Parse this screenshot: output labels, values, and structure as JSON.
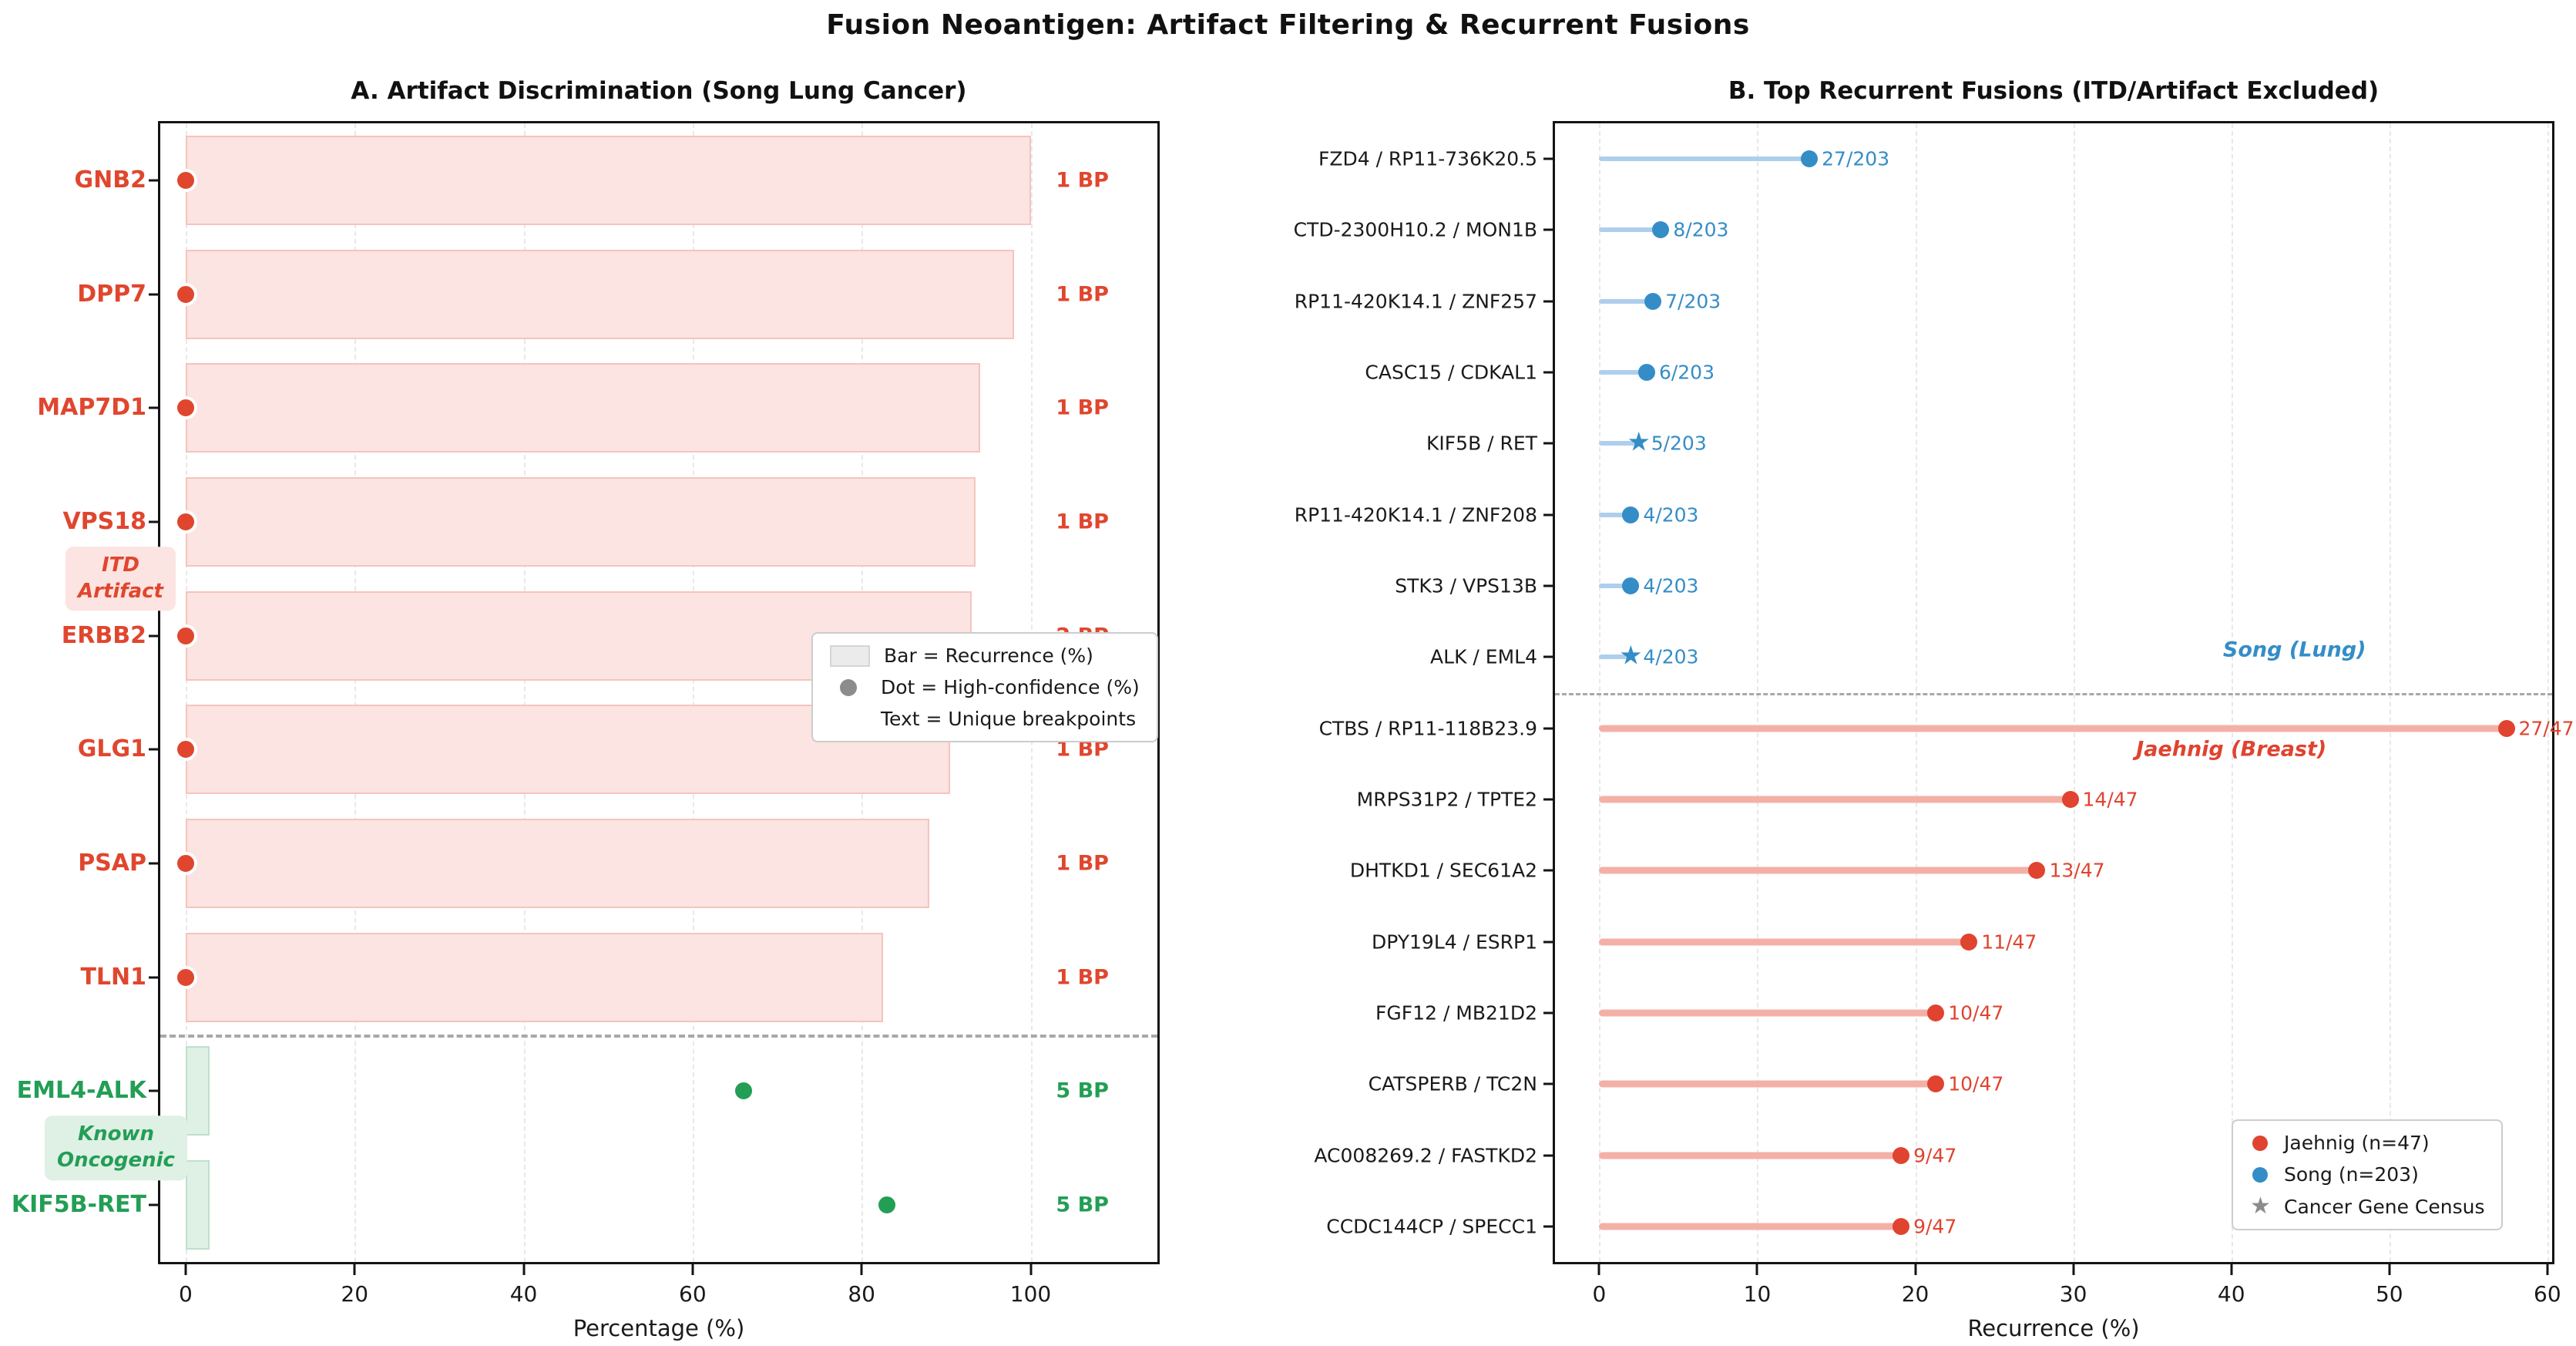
{
  "suptitle": "Fusion Neoantigen: Artifact Filtering & Recurrent Fusions",
  "colors": {
    "artifact_red": "#e0462e",
    "artifact_bar_fill": "#fbe4e1",
    "artifact_bar_edge": "#f5c4bd",
    "oncogenic_green": "#239e55",
    "oncogenic_bar_fill": "#dff0e5",
    "oncogenic_bar_edge": "#bfe0cc",
    "song_blue": "#348dc7",
    "song_stem": "#aecfec",
    "jaehnig_red": "#e0432f",
    "jaehnig_stem": "#f4b0a7",
    "census_gray": "#8c8c8c",
    "separator_gray": "#a8a8a8",
    "grid_gray": "#e8e8e8",
    "legend_swatch_fill": "#ebebeb",
    "legend_swatch_edge": "#d5d5d5",
    "legend_dot_gray": "#8c8c8c",
    "spine_black": "#141414"
  },
  "chart_data": [
    {
      "id": "A",
      "type": "bar",
      "title": "A. Artifact Discrimination (Song Lung Cancer)",
      "xlabel": "Percentage (%)",
      "xlim": [
        -3,
        115
      ],
      "xticks": [
        0,
        20,
        40,
        60,
        80,
        100
      ],
      "grid": true,
      "bp_text_x": 103,
      "separator_after_row": 7,
      "legend_items": [
        {
          "label": "Bar = Recurrence (%)",
          "marker": "bar"
        },
        {
          "label": "Dot = High-confidence (%)",
          "marker": "dot"
        },
        {
          "label": "Text = Unique breakpoints",
          "marker": "none"
        }
      ],
      "group_labels": [
        {
          "lines": [
            "ITD",
            "Artifact"
          ],
          "group": "artifact",
          "between_rows": [
            3,
            4
          ]
        },
        {
          "lines": [
            "Known",
            "Oncogenic"
          ],
          "group": "oncogenic",
          "between_rows": [
            8,
            9
          ]
        }
      ],
      "rows": [
        {
          "label": "GNB2",
          "bar_pct": 100,
          "dot_pct": 0,
          "breakpoints": "1 BP",
          "group": "artifact"
        },
        {
          "label": "DPP7",
          "bar_pct": 98,
          "dot_pct": 0,
          "breakpoints": "1 BP",
          "group": "artifact"
        },
        {
          "label": "MAP7D1",
          "bar_pct": 94,
          "dot_pct": 0,
          "breakpoints": "1 BP",
          "group": "artifact"
        },
        {
          "label": "VPS18",
          "bar_pct": 93.5,
          "dot_pct": 0,
          "breakpoints": "1 BP",
          "group": "artifact"
        },
        {
          "label": "ERBB2",
          "bar_pct": 93,
          "dot_pct": 0,
          "breakpoints": "2 BP",
          "group": "artifact"
        },
        {
          "label": "GLG1",
          "bar_pct": 90.5,
          "dot_pct": 0,
          "breakpoints": "1 BP",
          "group": "artifact"
        },
        {
          "label": "PSAP",
          "bar_pct": 88,
          "dot_pct": 0,
          "breakpoints": "1 BP",
          "group": "artifact"
        },
        {
          "label": "TLN1",
          "bar_pct": 82.5,
          "dot_pct": 0,
          "breakpoints": "1 BP",
          "group": "artifact"
        },
        {
          "label": "EML4-ALK",
          "bar_pct": 2.8,
          "dot_pct": 66,
          "breakpoints": "5 BP",
          "group": "oncogenic"
        },
        {
          "label": "KIF5B-RET",
          "bar_pct": 2.8,
          "dot_pct": 83,
          "breakpoints": "5 BP",
          "group": "oncogenic"
        }
      ]
    },
    {
      "id": "B",
      "type": "lollipop",
      "title": "B. Top Recurrent Fusions (ITD/Artifact Excluded)",
      "xlabel": "Recurrence (%)",
      "xlim": [
        -2.8,
        60.3
      ],
      "xticks": [
        0,
        10,
        20,
        30,
        40,
        50,
        60
      ],
      "grid": true,
      "separator_after_row": 7,
      "annotations": [
        {
          "text": "Song (Lung)",
          "x": 44,
          "row_pos": 6.9,
          "cohort": "song"
        },
        {
          "text": "Jaehnig (Breast)",
          "x": 40,
          "row_pos": 8.3,
          "cohort": "jaehnig"
        }
      ],
      "legend_items": [
        {
          "label": "Jaehnig (n=47)",
          "marker": "dot",
          "cohort": "jaehnig"
        },
        {
          "label": "Song (n=203)",
          "marker": "dot",
          "cohort": "song"
        },
        {
          "label": "Cancer Gene Census",
          "marker": "star",
          "cohort": "census"
        }
      ],
      "rows": [
        {
          "label": "FZD4 / RP11-736K20.5",
          "pct": 13.3,
          "count_label": "27/203",
          "cohort": "song",
          "marker": "dot"
        },
        {
          "label": "CTD-2300H10.2 / MON1B",
          "pct": 3.9,
          "count_label": "8/203",
          "cohort": "song",
          "marker": "dot"
        },
        {
          "label": "RP11-420K14.1 / ZNF257",
          "pct": 3.4,
          "count_label": "7/203",
          "cohort": "song",
          "marker": "dot"
        },
        {
          "label": "CASC15 / CDKAL1",
          "pct": 3.0,
          "count_label": "6/203",
          "cohort": "song",
          "marker": "dot"
        },
        {
          "label": "KIF5B / RET",
          "pct": 2.5,
          "count_label": "5/203",
          "cohort": "song",
          "marker": "star"
        },
        {
          "label": "RP11-420K14.1 / ZNF208",
          "pct": 2.0,
          "count_label": "4/203",
          "cohort": "song",
          "marker": "dot"
        },
        {
          "label": "STK3 / VPS13B",
          "pct": 2.0,
          "count_label": "4/203",
          "cohort": "song",
          "marker": "dot"
        },
        {
          "label": "ALK / EML4",
          "pct": 2.0,
          "count_label": "4/203",
          "cohort": "song",
          "marker": "star"
        },
        {
          "label": "CTBS / RP11-118B23.9",
          "pct": 57.4,
          "count_label": "27/47",
          "cohort": "jaehnig",
          "marker": "dot"
        },
        {
          "label": "MRPS31P2 / TPTE2",
          "pct": 29.8,
          "count_label": "14/47",
          "cohort": "jaehnig",
          "marker": "dot"
        },
        {
          "label": "DHTKD1 / SEC61A2",
          "pct": 27.7,
          "count_label": "13/47",
          "cohort": "jaehnig",
          "marker": "dot"
        },
        {
          "label": "DPY19L4 / ESRP1",
          "pct": 23.4,
          "count_label": "11/47",
          "cohort": "jaehnig",
          "marker": "dot"
        },
        {
          "label": "FGF12 / MB21D2",
          "pct": 21.3,
          "count_label": "10/47",
          "cohort": "jaehnig",
          "marker": "dot"
        },
        {
          "label": "CATSPERB / TC2N",
          "pct": 21.3,
          "count_label": "10/47",
          "cohort": "jaehnig",
          "marker": "dot"
        },
        {
          "label": "AC008269.2 / FASTKD2",
          "pct": 19.1,
          "count_label": "9/47",
          "cohort": "jaehnig",
          "marker": "dot"
        },
        {
          "label": "CCDC144CP / SPECC1",
          "pct": 19.1,
          "count_label": "9/47",
          "cohort": "jaehnig",
          "marker": "dot"
        }
      ]
    }
  ]
}
